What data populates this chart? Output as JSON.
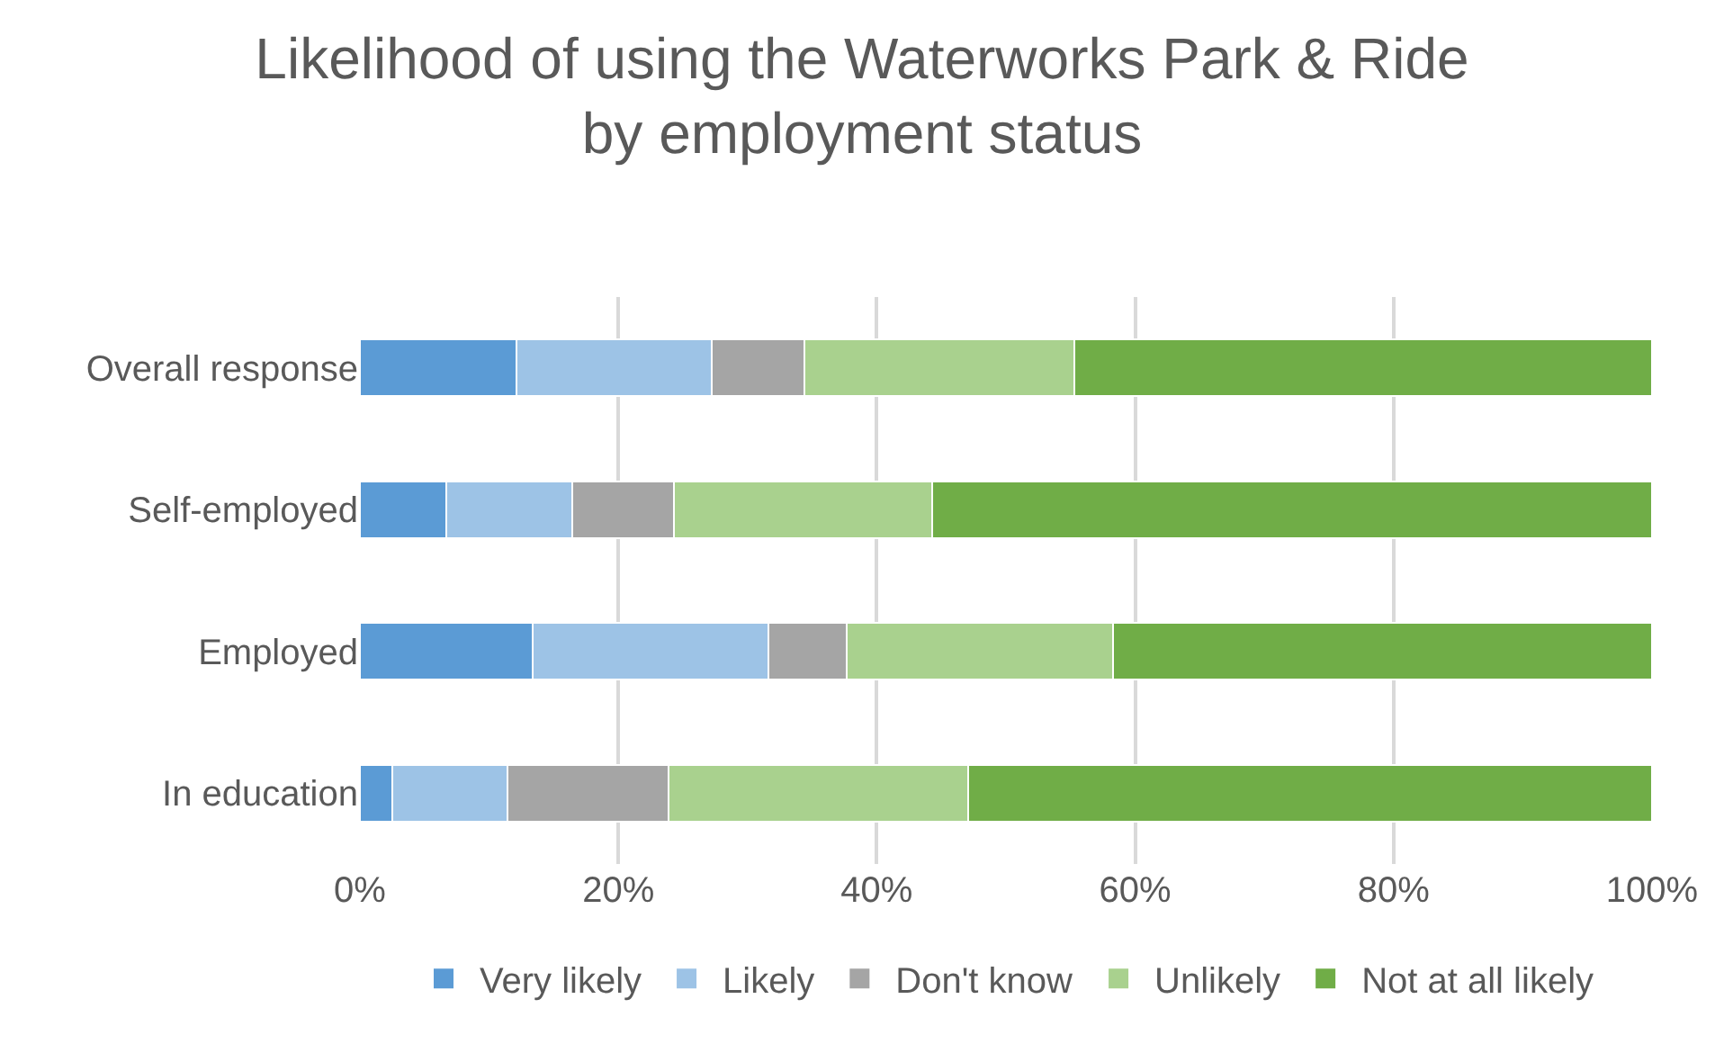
{
  "chart_data": {
    "type": "bar",
    "orientation": "horizontal",
    "stacked": true,
    "title": "Likelihood of using the Waterworks Park & Ride\nby employment status",
    "categories": [
      "Overall response",
      "Self-employed",
      "Employed",
      "In education"
    ],
    "series": [
      {
        "name": "Very likely",
        "color": "#5b9bd5",
        "values": [
          12.1,
          6.7,
          13.4,
          2.5
        ]
      },
      {
        "name": "Likely",
        "color": "#9dc3e6",
        "values": [
          15.1,
          9.7,
          18.2,
          8.9
        ]
      },
      {
        "name": "Don't know",
        "color": "#a5a5a5",
        "values": [
          7.2,
          7.9,
          6.1,
          12.5
        ]
      },
      {
        "name": "Unlikely",
        "color": "#a9d18e",
        "values": [
          20.9,
          20.0,
          20.6,
          23.2
        ]
      },
      {
        "name": "Not at all likely",
        "color": "#70ad47",
        "values": [
          44.7,
          55.7,
          41.7,
          52.9
        ]
      }
    ],
    "xlim": [
      0,
      100
    ],
    "xticks": [
      {
        "value": 0,
        "label": "0%"
      },
      {
        "value": 20,
        "label": "20%"
      },
      {
        "value": 40,
        "label": "40%"
      },
      {
        "value": 60,
        "label": "60%"
      },
      {
        "value": 80,
        "label": "80%"
      },
      {
        "value": 100,
        "label": "100%"
      }
    ],
    "grid": "x",
    "legend": "bottom"
  }
}
